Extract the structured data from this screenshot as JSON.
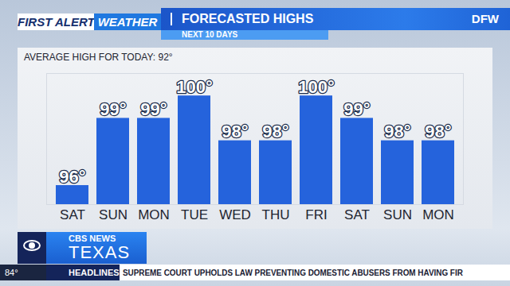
{
  "chart_data": {
    "type": "bar",
    "title": "FORECASTED HIGHS",
    "subtitle": "AVERAGE HIGH FOR TODAY: 92°",
    "categories": [
      "SAT",
      "SUN",
      "MON",
      "TUE",
      "WED",
      "THU",
      "FRI",
      "SAT",
      "SUN",
      "MON"
    ],
    "values": [
      96,
      99,
      99,
      100,
      98,
      98,
      100,
      99,
      98,
      98
    ],
    "value_labels": [
      "96°",
      "99°",
      "99°",
      "100°",
      "98°",
      "98°",
      "100°",
      "99°",
      "98°",
      "98°"
    ],
    "color": "#2563dc",
    "ylim": [
      95.15,
      101
    ],
    "data_labels": true,
    "tick_labels": "x",
    "grid": false
  },
  "header": {
    "brand": "FIRST ALERT",
    "brand_tag": "WEATHER",
    "period": "NEXT 10 DAYS",
    "location": "DFW"
  },
  "footer": {
    "network": "CBS NEWS",
    "region": "TEXAS",
    "temperature": "84°",
    "section": "HEADLINES",
    "ticker": "SUPREME COURT UPHOLDS LAW PREVENTING DOMESTIC ABUSERS FROM HAVING FIR"
  }
}
